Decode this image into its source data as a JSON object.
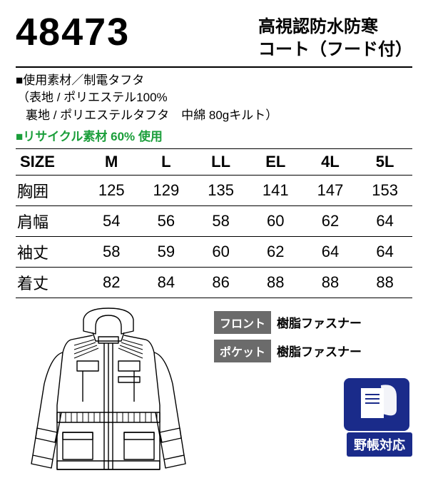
{
  "product_code": "48473",
  "product_name_line1": "高視認防水防寒",
  "product_name_line2": "コート（フード付）",
  "material": {
    "heading": "■使用素材／制電タフタ",
    "line2": "（表地 / ポリエステル100%",
    "line3": "裏地 / ポリエステルタフタ　中綿 80gキルト）"
  },
  "recycle": "■リサイクル素材 60% 使用",
  "size_table": {
    "header": [
      "SIZE",
      "M",
      "L",
      "LL",
      "EL",
      "4L",
      "5L"
    ],
    "rows": [
      {
        "label": "胸囲",
        "values": [
          "125",
          "129",
          "135",
          "141",
          "147",
          "153"
        ]
      },
      {
        "label": "肩幅",
        "values": [
          "54",
          "56",
          "58",
          "60",
          "62",
          "64"
        ]
      },
      {
        "label": "袖丈",
        "values": [
          "58",
          "59",
          "60",
          "62",
          "64",
          "64"
        ]
      },
      {
        "label": "着丈",
        "values": [
          "82",
          "84",
          "86",
          "88",
          "88",
          "88"
        ]
      }
    ]
  },
  "front_label": "フロント",
  "front_value": "樹脂ファスナー",
  "pocket_label": "ポケット",
  "pocket_value": "樹脂ファスナー",
  "field_badge": "野帳対応",
  "colors": {
    "badge_bg": "#1a2b8a",
    "tag_bg": "#6b6b6b",
    "recycle_green": "#1a9e3a"
  }
}
